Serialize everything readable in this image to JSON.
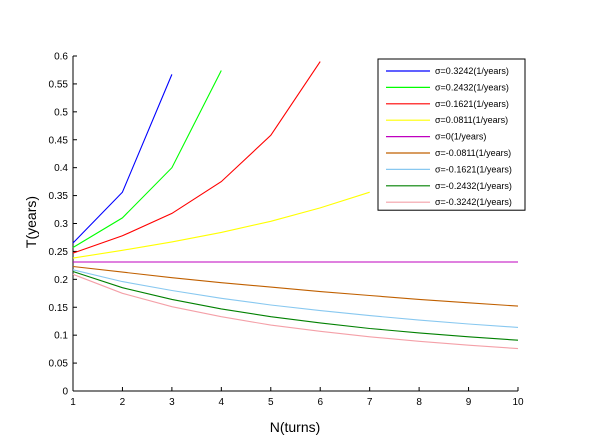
{
  "chart_data": {
    "type": "line",
    "title": "",
    "xlabel": "N(turns)",
    "ylabel": "T(years)",
    "xlim": [
      1,
      10
    ],
    "ylim": [
      0,
      0.6
    ],
    "x_ticks": [
      "1",
      "2",
      "3",
      "4",
      "5",
      "6",
      "7",
      "8",
      "9",
      "10"
    ],
    "y_ticks": [
      "0",
      "0.05",
      "0.1",
      "0.15",
      "0.2",
      "0.25",
      "0.3",
      "0.35",
      "0.4",
      "0.45",
      "0.5",
      "0.55",
      "0.6"
    ],
    "grid": false,
    "legend_position": "top-right",
    "series": [
      {
        "name": "σ=0.3242(1/years)",
        "color": "#0000ff",
        "points": [
          [
            1,
            0.265
          ],
          [
            2,
            0.356
          ],
          [
            3,
            0.567
          ]
        ]
      },
      {
        "name": "σ=0.2432(1/years)",
        "color": "#00ff00",
        "points": [
          [
            1,
            0.257
          ],
          [
            2,
            0.31
          ],
          [
            3,
            0.4
          ],
          [
            4,
            0.574
          ]
        ]
      },
      {
        "name": "σ=0.1621(1/years)",
        "color": "#ff0000",
        "points": [
          [
            1,
            0.247
          ],
          [
            2,
            0.278
          ],
          [
            3,
            0.318
          ],
          [
            4,
            0.375
          ],
          [
            5,
            0.458
          ],
          [
            6,
            0.59
          ]
        ]
      },
      {
        "name": "σ=0.0811(1/years)",
        "color": "#ffff00",
        "points": [
          [
            1,
            0.238
          ],
          [
            2,
            0.252
          ],
          [
            3,
            0.267
          ],
          [
            4,
            0.284
          ],
          [
            5,
            0.304
          ],
          [
            6,
            0.328
          ],
          [
            7,
            0.356
          ]
        ]
      },
      {
        "name": "σ=0(1/years)",
        "color": "#bf00bf",
        "points": [
          [
            1,
            0.231
          ],
          [
            2,
            0.231
          ],
          [
            3,
            0.231
          ],
          [
            4,
            0.231
          ],
          [
            5,
            0.231
          ],
          [
            6,
            0.231
          ],
          [
            7,
            0.231
          ],
          [
            8,
            0.231
          ],
          [
            9,
            0.231
          ],
          [
            10,
            0.231
          ]
        ]
      },
      {
        "name": "σ=-0.0811(1/years)",
        "color": "#c06000",
        "points": [
          [
            1,
            0.223
          ],
          [
            2,
            0.213
          ],
          [
            3,
            0.203
          ],
          [
            4,
            0.194
          ],
          [
            5,
            0.186
          ],
          [
            6,
            0.178
          ],
          [
            7,
            0.171
          ],
          [
            8,
            0.164
          ],
          [
            9,
            0.158
          ],
          [
            10,
            0.152
          ]
        ]
      },
      {
        "name": "σ=-0.1621(1/years)",
        "color": "#88c8f0",
        "points": [
          [
            1,
            0.217
          ],
          [
            2,
            0.196
          ],
          [
            3,
            0.18
          ],
          [
            4,
            0.166
          ],
          [
            5,
            0.154
          ],
          [
            6,
            0.144
          ],
          [
            7,
            0.135
          ],
          [
            8,
            0.127
          ],
          [
            9,
            0.12
          ],
          [
            10,
            0.114
          ]
        ]
      },
      {
        "name": "σ=-0.2432(1/years)",
        "color": "#008000",
        "points": [
          [
            1,
            0.214
          ],
          [
            2,
            0.185
          ],
          [
            3,
            0.164
          ],
          [
            4,
            0.147
          ],
          [
            5,
            0.133
          ],
          [
            6,
            0.122
          ],
          [
            7,
            0.112
          ],
          [
            8,
            0.104
          ],
          [
            9,
            0.097
          ],
          [
            10,
            0.091
          ]
        ]
      },
      {
        "name": "σ=-0.3242(1/years)",
        "color": "#f4a0a8",
        "points": [
          [
            1,
            0.209
          ],
          [
            2,
            0.175
          ],
          [
            3,
            0.151
          ],
          [
            4,
            0.133
          ],
          [
            5,
            0.118
          ],
          [
            6,
            0.107
          ],
          [
            7,
            0.097
          ],
          [
            8,
            0.089
          ],
          [
            9,
            0.082
          ],
          [
            10,
            0.076
          ]
        ]
      }
    ]
  }
}
